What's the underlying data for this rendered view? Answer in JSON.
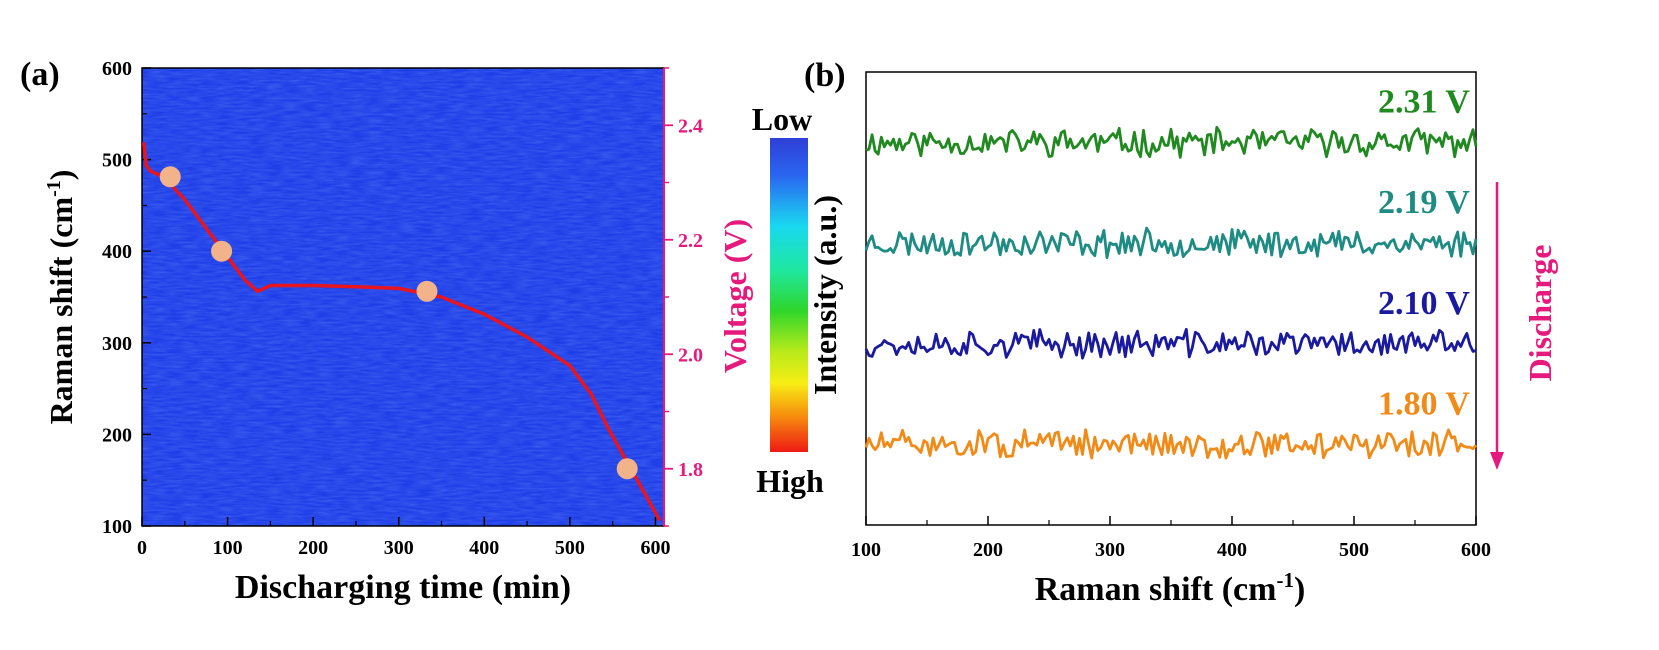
{
  "chart_data": [
    {
      "panel": "(a)",
      "type": "heatmap",
      "xlabel": "Discharging time (min)",
      "ylabel": "Raman shift (cm-1)",
      "xlim": [
        0,
        610
      ],
      "ylim": [
        100,
        600
      ],
      "x_ticks": [
        "0",
        "100",
        "200",
        "300",
        "400",
        "500",
        "600"
      ],
      "y_ticks": [
        "100",
        "200",
        "300",
        "400",
        "500",
        "600"
      ],
      "heatmap_fill": "uniform low intensity (blue) across the whole map",
      "colorbar": {
        "label": "Intensity (a.u.)",
        "top": "Low",
        "bottom": "High"
      },
      "right_axis": {
        "label": "Voltage (V)",
        "ticks": [
          "1.8",
          "2.0",
          "2.2",
          "2.4"
        ],
        "ylim": [
          1.7,
          2.5
        ],
        "color": "#e6197d"
      },
      "series": [
        {
          "color": "#e8141e",
          "points": [
            [
              2,
              2.37
            ],
            [
              5,
              2.33
            ],
            [
              10,
              2.32
            ],
            [
              25,
              2.31
            ],
            [
              50,
              2.27
            ],
            [
              80,
              2.21
            ],
            [
              100,
              2.17
            ],
            [
              120,
              2.13
            ],
            [
              135,
              2.11
            ],
            [
              150,
              2.12
            ],
            [
              200,
              2.12
            ],
            [
              250,
              2.118
            ],
            [
              300,
              2.115
            ],
            [
              350,
              2.1
            ],
            [
              400,
              2.07
            ],
            [
              450,
              2.03
            ],
            [
              500,
              1.98
            ],
            [
              525,
              1.93
            ],
            [
              545,
              1.87
            ],
            [
              560,
              1.83
            ],
            [
              575,
              1.79
            ],
            [
              590,
              1.75
            ],
            [
              605,
              1.71
            ]
          ]
        }
      ],
      "markers": {
        "color": "#f3b38a",
        "points": [
          [
            33,
            2.31
          ],
          [
            93,
            2.18
          ],
          [
            333,
            2.11
          ],
          [
            567,
            1.8
          ]
        ]
      }
    },
    {
      "panel": "(b)",
      "type": "line",
      "xlabel": "Raman shift (cm-1)",
      "xlim": [
        100,
        600
      ],
      "x_ticks": [
        "100",
        "200",
        "300",
        "400",
        "500",
        "600"
      ],
      "y_description": "stacked noisy spectra, no y-axis scale",
      "arrow_label": "Discharge",
      "arrow_color": "#e6197d",
      "series": [
        {
          "name": "2.31 V",
          "color": "#208a20",
          "baseline": 4.0,
          "amplitude": 0.12,
          "seed": 11
        },
        {
          "name": "2.19 V",
          "color": "#1e8c84",
          "baseline": 3.0,
          "amplitude": 0.12,
          "seed": 23
        },
        {
          "name": "2.10 V",
          "color": "#1a1aa0",
          "baseline": 2.0,
          "amplitude": 0.12,
          "seed": 37
        },
        {
          "name": "1.80 V",
          "color": "#f28a18",
          "baseline": 1.0,
          "amplitude": 0.12,
          "seed": 51
        }
      ],
      "yrange": [
        0.2,
        4.7
      ]
    }
  ]
}
